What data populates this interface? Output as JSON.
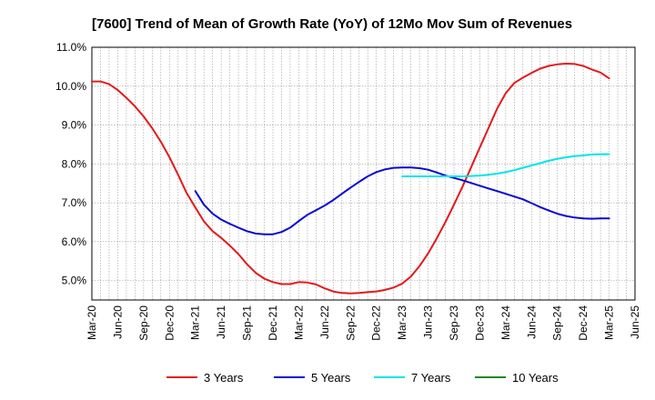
{
  "chart_data": {
    "type": "line",
    "title": "[7600]  Trend of Mean of Growth Rate (YoY) of 12Mo Mov Sum of Revenues",
    "xlabel": "",
    "ylabel": "",
    "ylim": [
      4.5,
      11.0
    ],
    "y_ticks": [
      "11.0%",
      "10.0%",
      "9.0%",
      "8.0%",
      "7.0%",
      "6.0%",
      "5.0%"
    ],
    "y_tick_values": [
      11.0,
      10.0,
      9.0,
      8.0,
      7.0,
      6.0,
      5.0
    ],
    "x_tick_labels": [
      "Mar-20",
      "Jun-20",
      "Sep-20",
      "Dec-20",
      "Mar-21",
      "Jun-21",
      "Sep-21",
      "Dec-21",
      "Mar-22",
      "Jun-22",
      "Sep-22",
      "Dec-22",
      "Mar-23",
      "Jun-23",
      "Sep-23",
      "Dec-23",
      "Mar-24",
      "Jun-24",
      "Sep-24",
      "Dec-24",
      "Mar-25",
      "Jun-25"
    ],
    "x_range_months": [
      0,
      63
    ],
    "grid": true,
    "legend_position": "bottom",
    "series": [
      {
        "name": "3 Years",
        "color": "#e31a1c",
        "x": [
          0,
          1,
          2,
          3,
          4,
          5,
          6,
          7,
          8,
          9,
          10,
          11,
          12,
          13,
          14,
          15,
          16,
          17,
          18,
          19,
          20,
          21,
          22,
          23,
          24,
          25,
          26,
          27,
          28,
          29,
          30,
          31,
          32,
          33,
          34,
          35,
          36,
          37,
          38,
          39,
          40,
          41,
          42,
          43,
          44,
          45,
          46,
          47,
          48,
          49,
          50,
          51,
          52,
          53,
          54,
          55,
          56,
          57,
          58,
          59,
          60
        ],
        "values": [
          10.12,
          10.12,
          10.05,
          9.9,
          9.7,
          9.48,
          9.22,
          8.92,
          8.57,
          8.17,
          7.72,
          7.25,
          6.88,
          6.52,
          6.27,
          6.1,
          5.9,
          5.68,
          5.42,
          5.2,
          5.05,
          4.96,
          4.91,
          4.91,
          4.96,
          4.95,
          4.9,
          4.8,
          4.72,
          4.68,
          4.67,
          4.68,
          4.7,
          4.72,
          4.76,
          4.82,
          4.92,
          5.1,
          5.37,
          5.7,
          6.08,
          6.5,
          6.95,
          7.42,
          7.92,
          8.42,
          8.92,
          9.42,
          9.82,
          10.08,
          10.22,
          10.34,
          10.45,
          10.52,
          10.56,
          10.58,
          10.57,
          10.52,
          10.43,
          10.35,
          10.2
        ]
      },
      {
        "name": "5 Years",
        "color": "#0a0ad2",
        "x": [
          12,
          13,
          14,
          15,
          16,
          17,
          18,
          19,
          20,
          21,
          22,
          23,
          24,
          25,
          26,
          27,
          28,
          29,
          30,
          31,
          32,
          33,
          34,
          35,
          36,
          37,
          38,
          39,
          40,
          41,
          42,
          43,
          44,
          45,
          46,
          47,
          48,
          49,
          50,
          51,
          52,
          53,
          54,
          55,
          56,
          57,
          58,
          59,
          60
        ],
        "values": [
          7.3,
          6.95,
          6.72,
          6.57,
          6.46,
          6.36,
          6.27,
          6.21,
          6.19,
          6.19,
          6.25,
          6.36,
          6.53,
          6.69,
          6.81,
          6.93,
          7.07,
          7.23,
          7.39,
          7.54,
          7.68,
          7.79,
          7.86,
          7.9,
          7.91,
          7.91,
          7.89,
          7.85,
          7.78,
          7.7,
          7.64,
          7.58,
          7.51,
          7.44,
          7.37,
          7.3,
          7.23,
          7.16,
          7.09,
          6.99,
          6.89,
          6.8,
          6.72,
          6.66,
          6.62,
          6.6,
          6.59,
          6.6,
          6.6
        ]
      },
      {
        "name": "7 Years",
        "color": "#00e5e5",
        "x": [
          36,
          37,
          38,
          39,
          40,
          41,
          42,
          43,
          44,
          45,
          46,
          47,
          48,
          49,
          50,
          51,
          52,
          53,
          54,
          55,
          56,
          57,
          58,
          59,
          60
        ],
        "values": [
          7.68,
          7.68,
          7.68,
          7.68,
          7.68,
          7.68,
          7.68,
          7.68,
          7.69,
          7.7,
          7.72,
          7.75,
          7.79,
          7.84,
          7.9,
          7.96,
          8.02,
          8.08,
          8.13,
          8.17,
          8.2,
          8.22,
          8.24,
          8.25,
          8.25
        ]
      },
      {
        "name": "10 Years",
        "color": "#1a8a1a",
        "x": [],
        "values": []
      }
    ]
  }
}
